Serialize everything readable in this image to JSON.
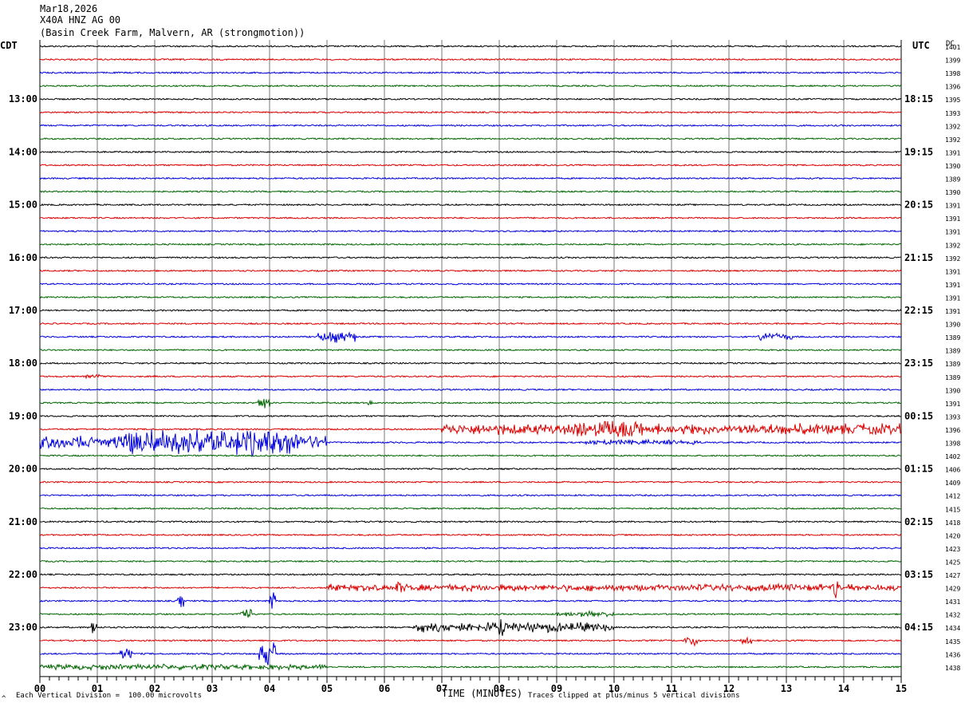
{
  "header": {
    "date": "Mar18,2026",
    "channel": "X40A HNZ AG 00",
    "location": "(Basin Creek Farm, Malvern, AR (strongmotion))"
  },
  "left_tz": "CDT",
  "right_tz": "UTC",
  "dc_label": "DC",
  "footer": {
    "scale": "Each Vertical Division =  100.00 microvolts",
    "clip": "Traces clipped at plus/minus 5 vertical divisions",
    "corner_mark": "^"
  },
  "chart_data": {
    "type": "line",
    "title": "",
    "xlabel": "TIME (MINUTES)",
    "xlim": [
      0,
      15
    ],
    "x_ticks": [
      "00",
      "01",
      "02",
      "03",
      "04",
      "05",
      "06",
      "07",
      "08",
      "09",
      "10",
      "11",
      "12",
      "13",
      "14",
      "15"
    ],
    "trace_colors": [
      "#000000",
      "#dd0000",
      "#0000dd",
      "#006600"
    ],
    "traces_per_hour": 4,
    "cdt_hour_labels": [
      "13:00",
      "14:00",
      "15:00",
      "16:00",
      "17:00",
      "18:00",
      "19:00",
      "20:00",
      "21:00",
      "22:00",
      "23:00"
    ],
    "utc_hour_labels": [
      "18:15",
      "19:15",
      "20:15",
      "21:15",
      "22:15",
      "23:15",
      "00:15",
      "01:15",
      "02:15",
      "03:15",
      "04:15"
    ],
    "dc_offsets": [
      1401,
      1399,
      1398,
      1396,
      1395,
      1393,
      1392,
      1392,
      1391,
      1390,
      1389,
      1390,
      1391,
      1391,
      1391,
      1392,
      1392,
      1391,
      1391,
      1391,
      1391,
      1390,
      1389,
      1389,
      1389,
      1389,
      1390,
      1391,
      1393,
      1396,
      1398,
      1402,
      1406,
      1409,
      1412,
      1415,
      1418,
      1420,
      1423,
      1425,
      1427,
      1429,
      1431,
      1432,
      1434,
      1435,
      1436,
      1438
    ],
    "activity": [
      {
        "trace": 5,
        "events": []
      },
      {
        "trace": 22,
        "events": [
          [
            4.8,
            5.5,
            8
          ],
          [
            12.5,
            13.1,
            6
          ]
        ]
      },
      {
        "trace": 25,
        "events": [
          [
            0.8,
            1.1,
            3
          ]
        ]
      },
      {
        "trace": 27,
        "events": [
          [
            3.8,
            4.0,
            8
          ],
          [
            5.7,
            5.8,
            5
          ]
        ]
      },
      {
        "trace": 29,
        "events": [
          [
            7.0,
            15.0,
            8
          ],
          [
            9.3,
            10.5,
            14
          ]
        ]
      },
      {
        "trace": 30,
        "events": [
          [
            0.0,
            5.0,
            10
          ],
          [
            1.5,
            4.5,
            18
          ],
          [
            9.5,
            11.5,
            4
          ]
        ]
      },
      {
        "trace": 41,
        "events": [
          [
            5.0,
            15.0,
            5
          ],
          [
            6.2,
            6.3,
            14
          ],
          [
            13.8,
            13.9,
            22
          ]
        ]
      },
      {
        "trace": 42,
        "events": [
          [
            2.4,
            2.5,
            10
          ],
          [
            4.0,
            4.1,
            12
          ]
        ]
      },
      {
        "trace": 43,
        "events": [
          [
            3.5,
            3.7,
            10
          ],
          [
            9.0,
            10.0,
            4
          ]
        ]
      },
      {
        "trace": 44,
        "events": [
          [
            0.9,
            1.0,
            10
          ],
          [
            6.5,
            10.0,
            7
          ],
          [
            8.0,
            8.1,
            12
          ]
        ]
      },
      {
        "trace": 45,
        "events": [
          [
            11.2,
            11.5,
            8
          ],
          [
            12.2,
            12.4,
            6
          ]
        ]
      },
      {
        "trace": 46,
        "events": [
          [
            1.4,
            1.6,
            10
          ],
          [
            3.8,
            4.1,
            16
          ]
        ]
      },
      {
        "trace": 47,
        "events": [
          [
            0.0,
            5.0,
            4
          ]
        ]
      }
    ]
  }
}
